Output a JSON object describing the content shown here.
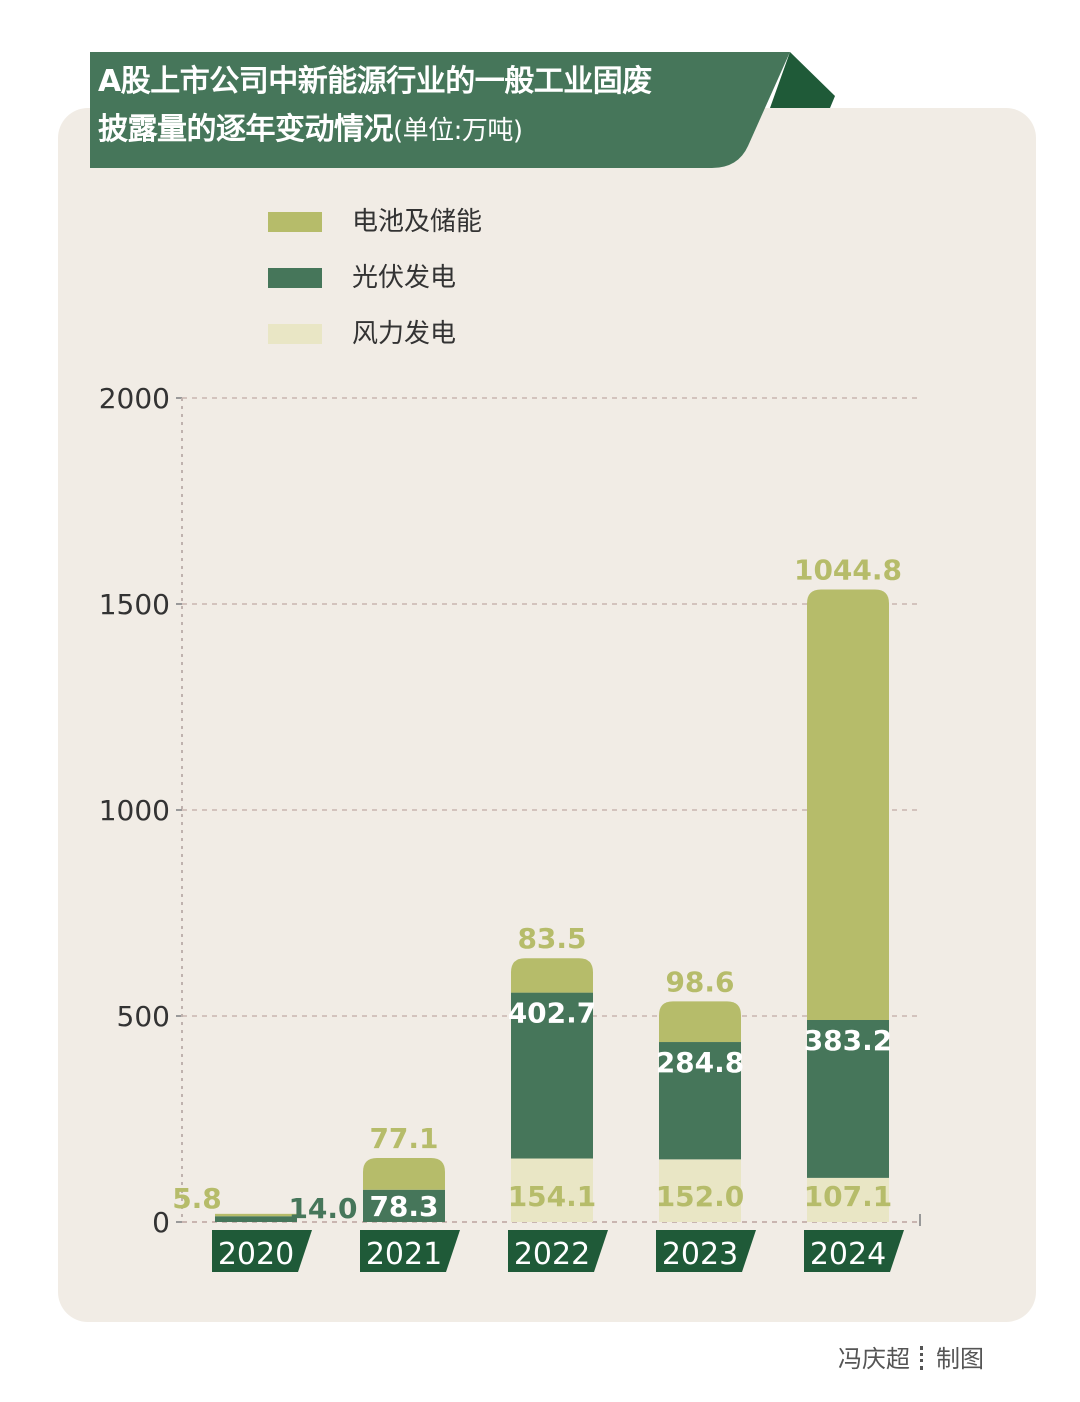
{
  "title": {
    "line1": "A股上市公司中新能源行业的一般工业固废",
    "line2": "披露量的逐年变动情况",
    "unit": "(单位:万吨)"
  },
  "colors": {
    "battery": "#b6bc6a",
    "pv": "#46765a",
    "wind": "#e9e6c5",
    "banner": "#46765a",
    "banner_dark": "#1f5a38",
    "card": "#f1ece5"
  },
  "legend": [
    {
      "label": "电池及储能",
      "color": "#b6bc6a"
    },
    {
      "label": "光伏发电",
      "color": "#46765a"
    },
    {
      "label": "风力发电",
      "color": "#e9e6c5"
    }
  ],
  "chart_data": {
    "type": "bar",
    "stacked": true,
    "categories": [
      "2020",
      "2021",
      "2022",
      "2023",
      "2024"
    ],
    "series": [
      {
        "name": "风力发电",
        "values": [
          0,
          0,
          154.1,
          152.0,
          107.1
        ],
        "labels": [
          "",
          "",
          "154.1",
          "152.0",
          "107.1"
        ]
      },
      {
        "name": "光伏发电",
        "values": [
          14.0,
          78.3,
          402.7,
          284.8,
          383.2
        ],
        "labels": [
          "14.0",
          "78.3",
          "402.7",
          "284.8",
          "383.2"
        ]
      },
      {
        "name": "电池及储能",
        "values": [
          5.8,
          77.1,
          83.5,
          98.6,
          1044.8
        ],
        "labels": [
          "5.8",
          "77.1",
          "83.5",
          "98.6",
          "1044.8"
        ]
      }
    ],
    "yticks": [
      "0",
      "500",
      "1000",
      "1500",
      "2000"
    ],
    "ylim": [
      0,
      2000
    ],
    "grid": true
  },
  "credit": {
    "author": "冯庆超",
    "role": "制图"
  }
}
